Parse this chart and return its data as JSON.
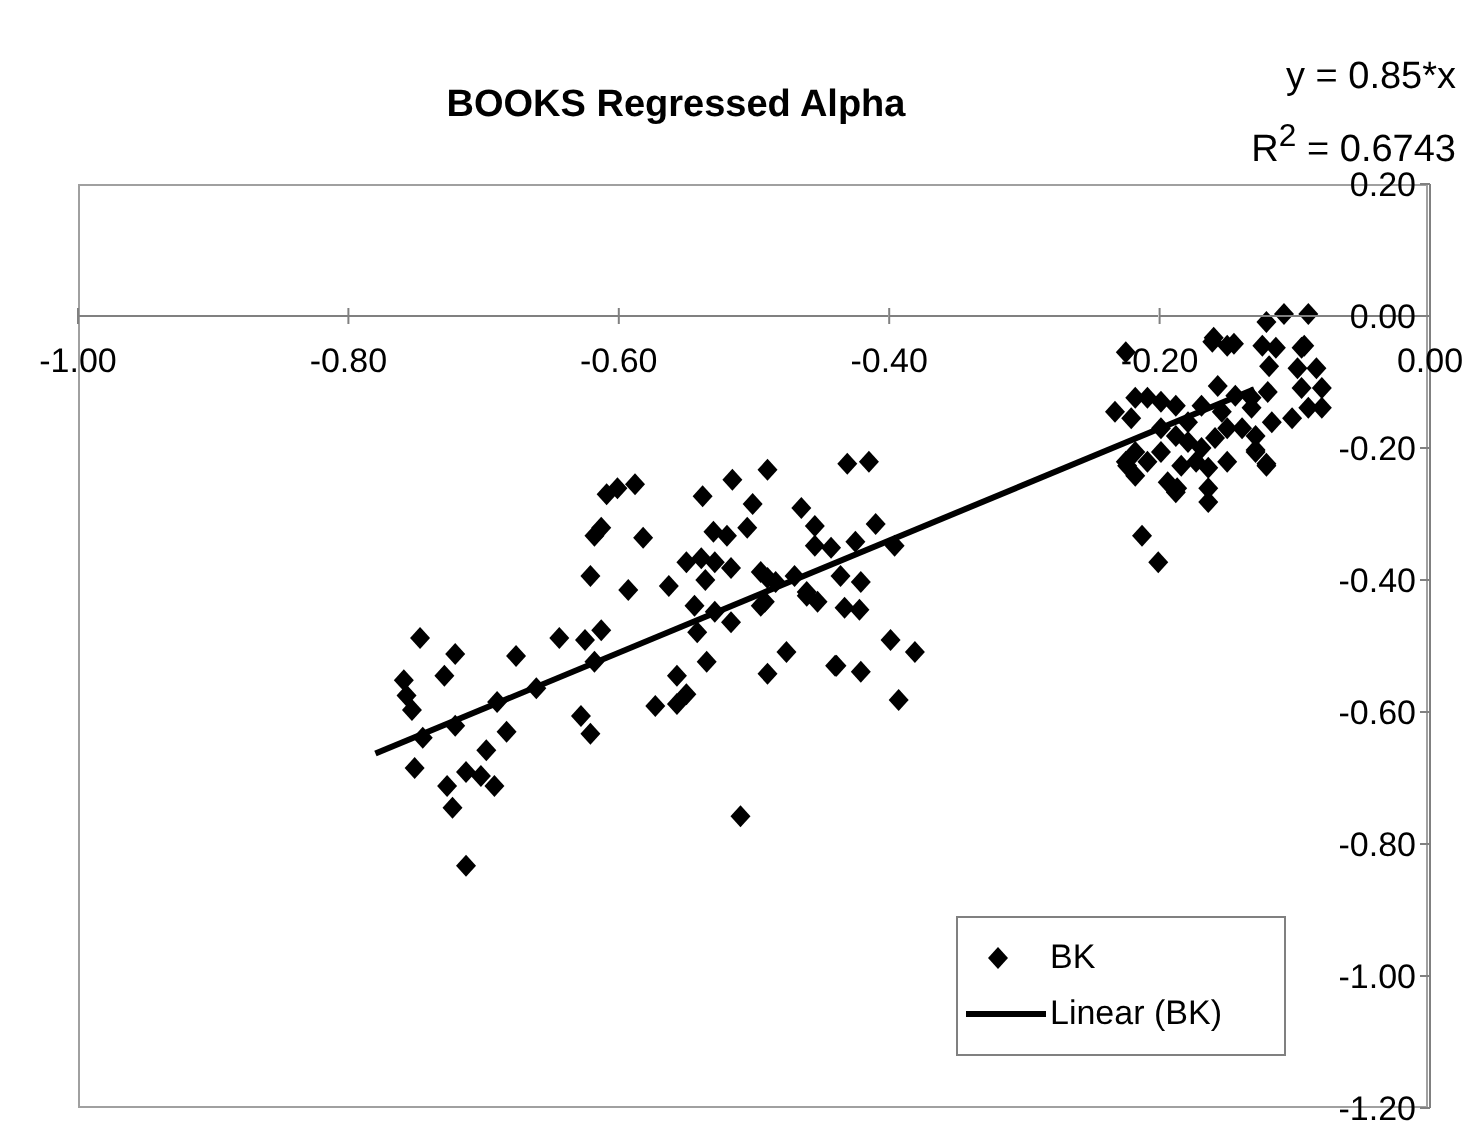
{
  "chart_data": {
    "type": "scatter",
    "title": "BOOKS Regressed Alpha",
    "annotations": [
      "y = 0.85*x",
      "R$^{2}$ = 0.6743"
    ],
    "xlim": [
      -1,
      0
    ],
    "xticks": [
      {
        "value": -1,
        "label": "-1.00"
      },
      {
        "value": -0.8,
        "label": "-0.80"
      },
      {
        "value": -0.6,
        "label": "-0.60"
      },
      {
        "value": -0.4,
        "label": "-0.40"
      },
      {
        "value": -0.2,
        "label": "-0.20"
      },
      {
        "value": 0,
        "label": "0.00"
      }
    ],
    "ylim": [
      -1.2,
      0.2
    ],
    "yticks": [
      {
        "value": 0.2,
        "label": "0.20"
      },
      {
        "value": 0,
        "label": "0.00"
      },
      {
        "value": -0.2,
        "label": "-0.20"
      },
      {
        "value": -0.4,
        "label": "-0.40"
      },
      {
        "value": -0.6,
        "label": "-0.60"
      },
      {
        "value": -0.8,
        "label": "-0.80"
      },
      {
        "value": -1,
        "label": "-1.00"
      },
      {
        "value": -1.2,
        "label": "-1.20"
      }
    ],
    "legend": "bottom right",
    "series": [
      {
        "name": "BK",
        "marker": "diamond",
        "color": "#000000",
        "x": [
          -0.747,
          -0.721,
          -0.729,
          -0.759,
          -0.757,
          -0.753,
          -0.745,
          -0.751,
          -0.721,
          -0.69,
          -0.683,
          -0.698,
          -0.727,
          -0.713,
          -0.702,
          -0.692,
          -0.723,
          -0.713,
          -0.676,
          -0.661,
          -0.644,
          -0.625,
          -0.613,
          -0.618,
          -0.628,
          -0.621,
          -0.621,
          -0.593,
          -0.618,
          -0.613,
          -0.609,
          -0.601,
          -0.588,
          -0.582,
          -0.563,
          -0.538,
          -0.516,
          -0.49,
          -0.501,
          -0.53,
          -0.52,
          -0.505,
          -0.55,
          -0.539,
          -0.536,
          -0.529,
          -0.517,
          -0.544,
          -0.529,
          -0.517,
          -0.542,
          -0.535,
          -0.557,
          -0.55,
          -0.557,
          -0.573,
          -0.51,
          -0.49,
          -0.476,
          -0.495,
          -0.484,
          -0.492,
          -0.47,
          -0.465,
          -0.455,
          -0.455,
          -0.461,
          -0.453,
          -0.44,
          -0.431,
          -0.415,
          -0.425,
          -0.41,
          -0.396,
          -0.443,
          -0.49,
          -0.495,
          -0.461,
          -0.436,
          -0.421,
          -0.433,
          -0.422,
          -0.439,
          -0.421,
          -0.399,
          -0.381,
          -0.393,
          -0.213,
          -0.201,
          -0.187,
          -0.164,
          -0.164,
          -0.225,
          -0.218,
          -0.121,
          -0.129,
          -0.233,
          -0.225,
          -0.16,
          -0.145,
          -0.121,
          -0.108,
          -0.09,
          -0.093,
          -0.124,
          -0.119,
          -0.132,
          -0.121,
          -0.129,
          -0.188,
          -0.194,
          -0.161,
          -0.15,
          -0.114,
          -0.095,
          -0.098,
          -0.084,
          -0.08,
          -0.095,
          -0.09,
          -0.102,
          -0.08,
          -0.12,
          -0.117,
          -0.132,
          -0.144,
          -0.154,
          -0.157,
          -0.169,
          -0.179,
          -0.188,
          -0.199,
          -0.209,
          -0.218,
          -0.221,
          -0.199,
          -0.188,
          -0.179,
          -0.169,
          -0.159,
          -0.15,
          -0.139,
          -0.129,
          -0.218,
          -0.224,
          -0.209,
          -0.199,
          -0.184,
          -0.173,
          -0.164,
          -0.15
        ],
        "values": [
          -0.488,
          -0.512,
          -0.545,
          -0.552,
          -0.575,
          -0.597,
          -0.639,
          -0.685,
          -0.621,
          -0.585,
          -0.63,
          -0.658,
          -0.712,
          -0.691,
          -0.697,
          -0.712,
          -0.745,
          -0.833,
          -0.515,
          -0.564,
          -0.488,
          -0.491,
          -0.476,
          -0.524,
          -0.606,
          -0.633,
          -0.394,
          -0.415,
          -0.333,
          -0.321,
          -0.27,
          -0.261,
          -0.255,
          -0.336,
          -0.409,
          -0.273,
          -0.248,
          -0.233,
          -0.285,
          -0.327,
          -0.333,
          -0.321,
          -0.373,
          -0.367,
          -0.4,
          -0.373,
          -0.382,
          -0.439,
          -0.448,
          -0.464,
          -0.479,
          -0.524,
          -0.545,
          -0.573,
          -0.588,
          -0.591,
          -0.758,
          -0.542,
          -0.509,
          -0.388,
          -0.403,
          -0.433,
          -0.394,
          -0.291,
          -0.318,
          -0.348,
          -0.418,
          -0.433,
          -0.53,
          -0.224,
          -0.221,
          -0.342,
          -0.315,
          -0.348,
          -0.351,
          -0.397,
          -0.439,
          -0.424,
          -0.394,
          -0.403,
          -0.442,
          -0.445,
          -0.53,
          -0.539,
          -0.491,
          -0.509,
          -0.582,
          -0.333,
          -0.373,
          -0.261,
          -0.282,
          -0.261,
          -0.221,
          -0.242,
          -0.227,
          -0.206,
          -0.145,
          -0.055,
          -0.033,
          -0.042,
          -0.009,
          0.003,
          0.003,
          -0.045,
          -0.045,
          -0.076,
          -0.139,
          -0.224,
          -0.203,
          -0.267,
          -0.252,
          -0.039,
          -0.045,
          -0.048,
          -0.048,
          -0.079,
          -0.079,
          -0.109,
          -0.109,
          -0.139,
          -0.155,
          -0.139,
          -0.115,
          -0.161,
          -0.124,
          -0.121,
          -0.145,
          -0.106,
          -0.136,
          -0.161,
          -0.136,
          -0.13,
          -0.124,
          -0.124,
          -0.155,
          -0.17,
          -0.182,
          -0.191,
          -0.2,
          -0.185,
          -0.17,
          -0.17,
          -0.182,
          -0.206,
          -0.227,
          -0.221,
          -0.206,
          -0.227,
          -0.221,
          -0.23,
          -0.221
        ]
      },
      {
        "name": "Linear (BK)",
        "type": "line",
        "color": "#000000",
        "x": [
          -0.78,
          -0.13
        ],
        "values": [
          -0.663,
          -0.111
        ]
      }
    ]
  }
}
